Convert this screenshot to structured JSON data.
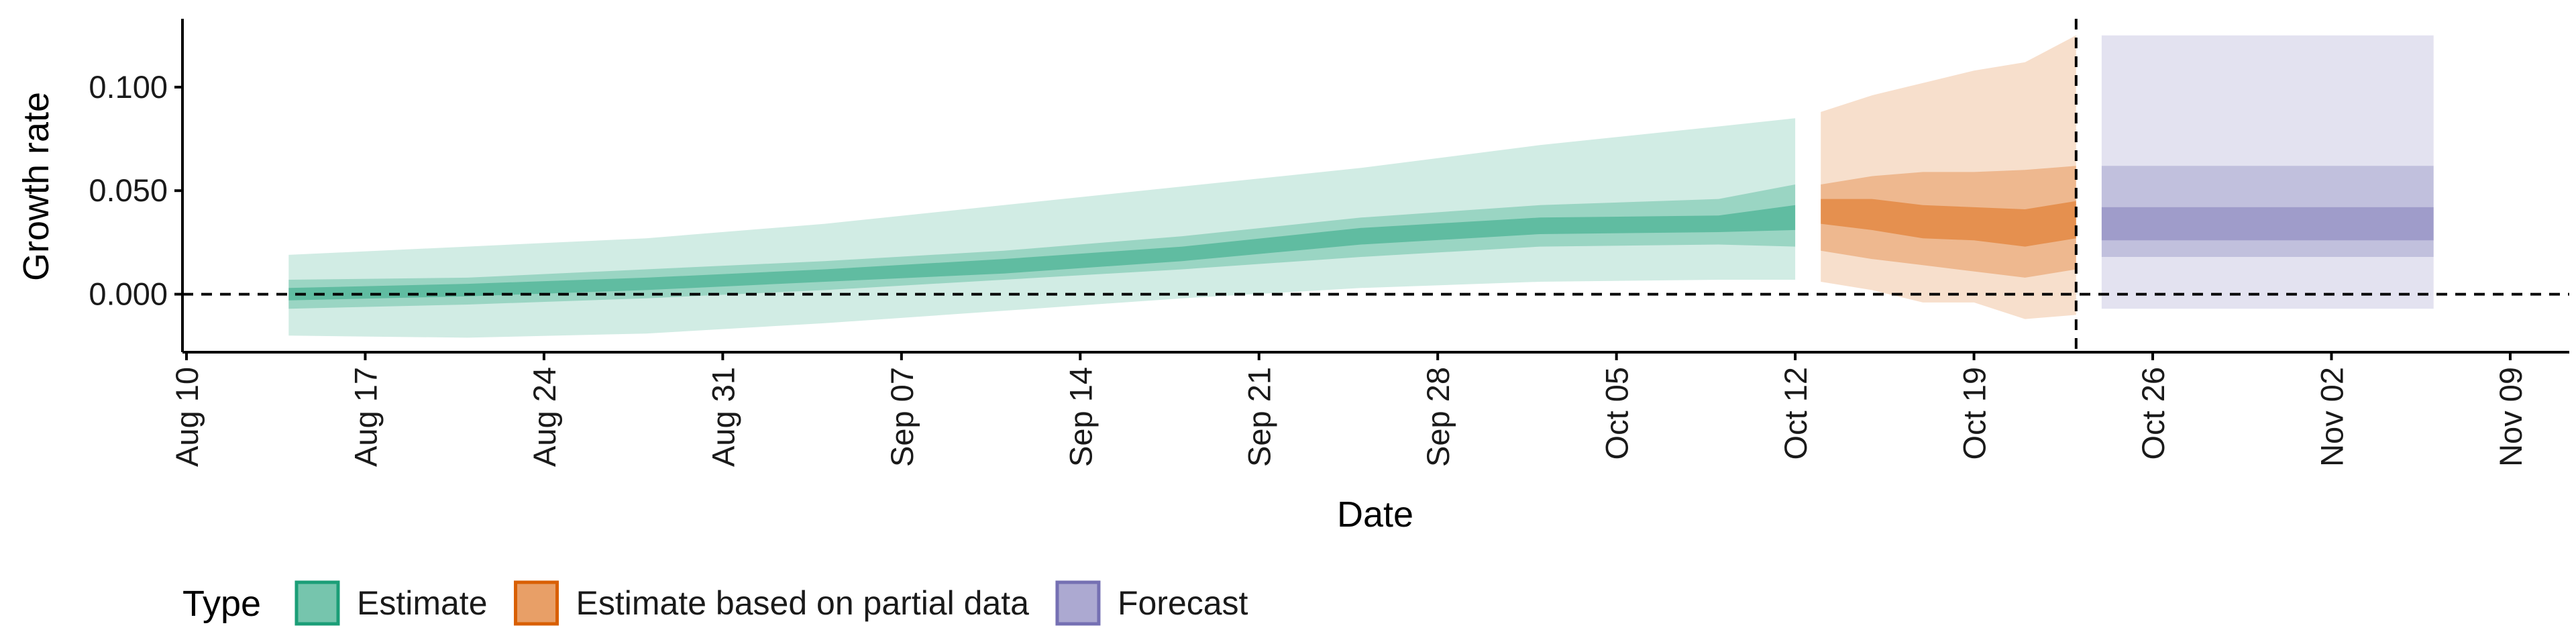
{
  "chart_data": {
    "type": "area",
    "title": "",
    "xlabel": "Date",
    "ylabel": "Growth rate",
    "x_axis": {
      "type": "date",
      "range": [
        "2020-08-10",
        "2020-11-10"
      ],
      "ticks": [
        "2020-08-10",
        "2020-08-17",
        "2020-08-24",
        "2020-08-31",
        "2020-09-07",
        "2020-09-14",
        "2020-09-21",
        "2020-09-28",
        "2020-10-05",
        "2020-10-12",
        "2020-10-19",
        "2020-10-26",
        "2020-11-02",
        "2020-11-09"
      ],
      "tick_labels": [
        "Aug 10",
        "Aug 17",
        "Aug 24",
        "Aug 31",
        "Sep 07",
        "Sep 14",
        "Sep 21",
        "Sep 28",
        "Oct 05",
        "Oct 12",
        "Oct 19",
        "Oct 26",
        "Nov 02",
        "Nov 09"
      ]
    },
    "y_axis": {
      "range": [
        -0.028,
        0.133
      ],
      "ticks": [
        0.0,
        0.05,
        0.1
      ],
      "tick_labels": [
        "0.000",
        "0.050",
        "0.100"
      ]
    },
    "grid": false,
    "reference_lines": {
      "horizontal_y": 0,
      "vertical_date": "2020-10-23"
    },
    "legend": {
      "title": "Type",
      "position": "bottom",
      "entries": [
        {
          "label": "Estimate",
          "color": "#1b9e77"
        },
        {
          "label": "Estimate based on partial data",
          "color": "#d95f02"
        },
        {
          "label": "Forecast",
          "color": "#7570b3"
        }
      ]
    },
    "series": [
      {
        "name": "Estimate",
        "color": "#1b9e77",
        "x": [
          "2020-08-14",
          "2020-08-21",
          "2020-08-28",
          "2020-09-04",
          "2020-09-11",
          "2020-09-18",
          "2020-09-25",
          "2020-10-02",
          "2020-10-09",
          "2020-10-12"
        ],
        "median": [
          0.0,
          0.002,
          0.005,
          0.009,
          0.014,
          0.02,
          0.028,
          0.033,
          0.034,
          0.037
        ],
        "band_90": {
          "lower": [
            -0.02,
            -0.021,
            -0.019,
            -0.014,
            -0.008,
            -0.002,
            0.003,
            0.006,
            0.007,
            0.007
          ],
          "upper": [
            0.019,
            0.023,
            0.027,
            0.034,
            0.043,
            0.052,
            0.061,
            0.072,
            0.081,
            0.085
          ]
        },
        "band_50": {
          "lower": [
            -0.007,
            -0.005,
            -0.002,
            0.002,
            0.007,
            0.012,
            0.018,
            0.023,
            0.024,
            0.023
          ],
          "upper": [
            0.007,
            0.008,
            0.012,
            0.016,
            0.021,
            0.028,
            0.037,
            0.043,
            0.046,
            0.053
          ]
        },
        "band_20": {
          "lower": [
            -0.003,
            -0.001,
            0.002,
            0.006,
            0.01,
            0.016,
            0.024,
            0.029,
            0.03,
            0.031
          ],
          "upper": [
            0.003,
            0.005,
            0.008,
            0.012,
            0.017,
            0.023,
            0.032,
            0.037,
            0.038,
            0.043
          ]
        }
      },
      {
        "name": "Estimate based on partial data",
        "color": "#d95f02",
        "x": [
          "2020-10-13",
          "2020-10-15",
          "2020-10-17",
          "2020-10-19",
          "2020-10-21",
          "2020-10-23"
        ],
        "median": [
          0.04,
          0.038,
          0.034,
          0.034,
          0.032,
          0.036
        ],
        "band_90": {
          "lower": [
            0.006,
            0.002,
            -0.004,
            -0.004,
            -0.012,
            -0.01
          ],
          "upper": [
            0.088,
            0.096,
            0.102,
            0.108,
            0.112,
            0.125
          ]
        },
        "band_50": {
          "lower": [
            0.021,
            0.017,
            0.014,
            0.011,
            0.008,
            0.012
          ],
          "upper": [
            0.053,
            0.057,
            0.059,
            0.059,
            0.06,
            0.062
          ]
        },
        "band_20": {
          "lower": [
            0.034,
            0.031,
            0.027,
            0.026,
            0.023,
            0.027
          ],
          "upper": [
            0.046,
            0.046,
            0.043,
            0.042,
            0.041,
            0.045
          ]
        }
      },
      {
        "name": "Forecast",
        "color": "#7570b3",
        "x": [
          "2020-10-24",
          "2020-11-06"
        ],
        "median": [
          0.034,
          0.034
        ],
        "band_90": {
          "lower": [
            -0.007,
            -0.007
          ],
          "upper": [
            0.125,
            0.125
          ]
        },
        "band_50": {
          "lower": [
            0.018,
            0.018
          ],
          "upper": [
            0.062,
            0.062
          ]
        },
        "band_20": {
          "lower": [
            0.026,
            0.026
          ],
          "upper": [
            0.042,
            0.042
          ]
        }
      }
    ]
  }
}
